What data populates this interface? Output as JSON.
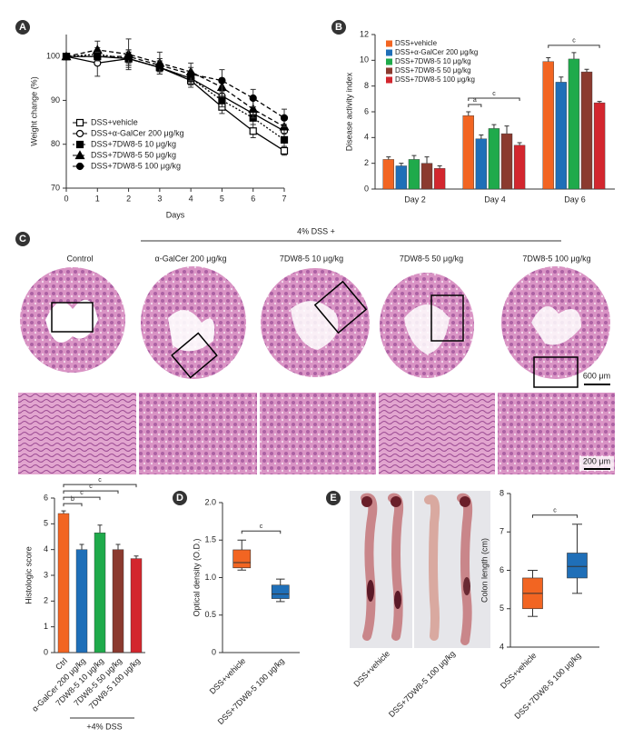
{
  "chart_data": [
    {
      "type": "line",
      "panel": "A",
      "xlabel": "Days",
      "ylabel": "Weight change (%)",
      "x": [
        0,
        1,
        2,
        3,
        4,
        5,
        6,
        7
      ],
      "xlim": [
        0,
        7
      ],
      "xticks": [
        0,
        1,
        2,
        3,
        4,
        5,
        6,
        7
      ],
      "ylim": [
        70,
        105
      ],
      "yticks": [
        70,
        80,
        90,
        100
      ],
      "legend": "lower left",
      "series": [
        {
          "name": "DSS+vehicle",
          "color": "#000000",
          "marker": "square-open",
          "dash": "solid",
          "values": [
            100,
            100,
            99.5,
            97.5,
            94.5,
            88.5,
            83,
            78.5
          ],
          "errors": [
            0,
            1.5,
            1.5,
            1,
            1.5,
            1.5,
            1.5,
            1
          ]
        },
        {
          "name": "DSS+α-GalCer 200 μg/kg",
          "color": "#000000",
          "marker": "circle-open",
          "dash": "solid",
          "values": [
            100,
            98.5,
            99.5,
            97.5,
            95,
            91,
            87,
            83
          ],
          "errors": [
            0,
            3,
            2,
            1.5,
            1.5,
            1.5,
            1.5,
            1.5
          ]
        },
        {
          "name": "DSS+7DW8-5 10 μg/kg",
          "color": "#000000",
          "marker": "square",
          "dash": "dotted",
          "values": [
            100,
            100.5,
            99.5,
            97.5,
            95,
            90,
            86,
            81
          ],
          "errors": [
            0,
            1.5,
            1.5,
            1.5,
            1.5,
            1.5,
            1.5,
            1.5
          ]
        },
        {
          "name": "DSS+7DW8-5 50 μg/kg",
          "color": "#000000",
          "marker": "triangle",
          "dash": "dashed",
          "values": [
            100,
            101.5,
            100.5,
            98.5,
            96.5,
            93,
            88,
            84
          ],
          "errors": [
            0,
            2,
            3.5,
            2.5,
            2,
            2,
            2,
            1.5
          ]
        },
        {
          "name": "DSS+7DW8-5 100 μg/kg",
          "color": "#000000",
          "marker": "circle",
          "dash": "dashed",
          "values": [
            100,
            100,
            100,
            98,
            96,
            94.5,
            90.5,
            86
          ],
          "errors": [
            0,
            1,
            1.5,
            1.5,
            1.5,
            2.5,
            2,
            2
          ]
        }
      ]
    },
    {
      "type": "bar",
      "panel": "B",
      "ylabel": "Disease activity index",
      "categories": [
        "Day 2",
        "Day 4",
        "Day 6"
      ],
      "ylim": [
        0,
        12
      ],
      "yticks": [
        0,
        2,
        4,
        6,
        8,
        10,
        12
      ],
      "legend": "upper left",
      "series": [
        {
          "name": "DSS+vehicle",
          "color": "#f26522",
          "values": [
            2.3,
            5.7,
            9.9
          ],
          "errors": [
            0.2,
            0.3,
            0.3
          ]
        },
        {
          "name": "DSS+α-GalCer 200 μg/kg",
          "color": "#1f6fb8",
          "values": [
            1.8,
            3.9,
            8.3
          ],
          "errors": [
            0.2,
            0.3,
            0.4
          ]
        },
        {
          "name": "DSS+7DW8-5 10 μg/kg",
          "color": "#1faa4b",
          "values": [
            2.3,
            4.7,
            10.1
          ],
          "errors": [
            0.3,
            0.3,
            0.5
          ]
        },
        {
          "name": "DSS+7DW8-5 50 μg/kg",
          "color": "#8b3a2f",
          "values": [
            2.0,
            4.3,
            9.1
          ],
          "errors": [
            0.5,
            0.6,
            0.2
          ]
        },
        {
          "name": "DSS+7DW8-5 100 μg/kg",
          "color": "#d3262e",
          "values": [
            1.6,
            3.4,
            6.7
          ],
          "errors": [
            0.2,
            0.2,
            0.1
          ]
        }
      ],
      "brackets": [
        {
          "category": 1,
          "from": 0,
          "to": 1,
          "label": "a"
        },
        {
          "category": 1,
          "from": 0,
          "to": 4,
          "label": "c"
        },
        {
          "category": 2,
          "from": 0,
          "to": 4,
          "label": "c"
        }
      ]
    },
    {
      "type": "bar",
      "ylabel": "Histologic score",
      "xlabel": "+4% DSS",
      "categories": [
        "Ctrl",
        "α-GalCer 200 μg/kg",
        "7DW8-5 10 μg/kg",
        "7DW8-5 50 μg/kg",
        "7DW8-5 100 μg/kg"
      ],
      "values": [
        5.4,
        4.0,
        4.65,
        4.0,
        3.65
      ],
      "errors": [
        0.1,
        0.2,
        0.3,
        0.2,
        0.1
      ],
      "colors": [
        "#f26522",
        "#1f6fb8",
        "#1faa4b",
        "#8b3a2f",
        "#d3262e"
      ],
      "ylim": [
        0,
        6
      ],
      "yticks": [
        0,
        1,
        2,
        3,
        4,
        5,
        6
      ],
      "brackets": [
        {
          "from": 0,
          "to": 1,
          "label": "b"
        },
        {
          "from": 0,
          "to": 2,
          "label": "c"
        },
        {
          "from": 0,
          "to": 3,
          "label": "c"
        },
        {
          "from": 0,
          "to": 4,
          "label": "c"
        }
      ]
    },
    {
      "type": "box",
      "panel": "D",
      "ylabel": "Optical density (O.D.)",
      "categories": [
        "DSS+vehicle",
        "DSS+7DW8-5 100 μg/kg"
      ],
      "colors": [
        "#f26522",
        "#1f6fb8"
      ],
      "boxes": [
        {
          "min": 1.1,
          "q1": 1.13,
          "median": 1.2,
          "q3": 1.37,
          "max": 1.5
        },
        {
          "min": 0.68,
          "q1": 0.72,
          "median": 0.78,
          "q3": 0.9,
          "max": 0.98
        }
      ],
      "ylim": [
        0,
        2
      ],
      "yticks": [
        0,
        0.5,
        {
          "value": 1,
          "label": "1.0"
        },
        1.5,
        {
          "value": 2,
          "label": "2.0"
        }
      ],
      "brackets": [
        {
          "from": 0,
          "to": 1,
          "label": "c"
        }
      ]
    },
    {
      "type": "box",
      "ylabel": "Colon length (cm)",
      "categories": [
        "DSS+vehicle",
        "DSS+7DW8-5 100 μg/kg"
      ],
      "colors": [
        "#f26522",
        "#1f6fb8"
      ],
      "boxes": [
        {
          "min": 4.8,
          "q1": 5.0,
          "median": 5.4,
          "q3": 5.8,
          "max": 6.0
        },
        {
          "min": 5.4,
          "q1": 5.8,
          "median": 6.1,
          "q3": 6.45,
          "max": 7.2
        }
      ],
      "ylim": [
        4,
        8
      ],
      "yticks": [
        4,
        5,
        6,
        7,
        8
      ],
      "brackets": [
        {
          "from": 0,
          "to": 1,
          "label": "c"
        }
      ]
    }
  ],
  "histology": {
    "panel": "C",
    "header": "4% DSS +",
    "columns": [
      "Control",
      "α-GalCer 200 μg/kg",
      "7DW8-5 10 μg/kg",
      "7DW8-5 50 μg/kg",
      "7DW8-5 100 μg/kg"
    ],
    "scale_bars": [
      "600 μm",
      "200 μm"
    ]
  },
  "photo": {
    "panel": "E",
    "labels": [
      "DSS+vehicle",
      "DSS+7DW8-5 100 μg/kg"
    ]
  }
}
